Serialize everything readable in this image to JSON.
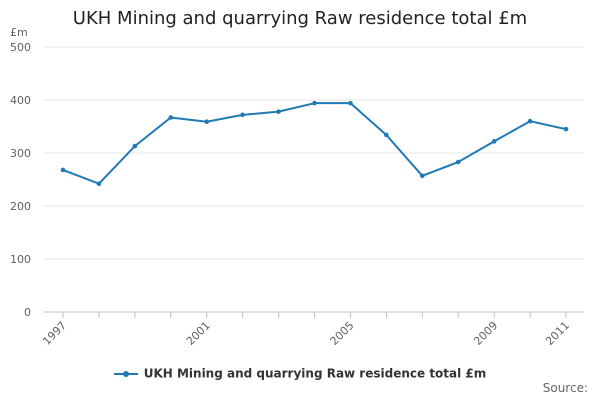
{
  "chart_data": {
    "type": "line",
    "title": "UKH Mining and quarrying Raw residence total £m",
    "unit_label": "£m",
    "xlabel": "",
    "ylabel": "",
    "ylim": [
      0,
      500
    ],
    "yticks": [
      0,
      100,
      200,
      300,
      400,
      500
    ],
    "xticks": [
      1997,
      2001,
      2005,
      2009,
      2011
    ],
    "x": [
      1997,
      1998,
      1999,
      2000,
      2001,
      2002,
      2003,
      2004,
      2005,
      2006,
      2007,
      2008,
      2009,
      2010,
      2011
    ],
    "series": [
      {
        "name": "UKH Mining and quarrying Raw residence total £m",
        "values": [
          268,
          242,
          313,
          367,
          359,
          372,
          378,
          394,
          394,
          334,
          257,
          283,
          322,
          360,
          345
        ],
        "color": "#1f7ab5"
      }
    ],
    "grid": true,
    "legend_position": "bottom",
    "source_label": "Source:"
  }
}
